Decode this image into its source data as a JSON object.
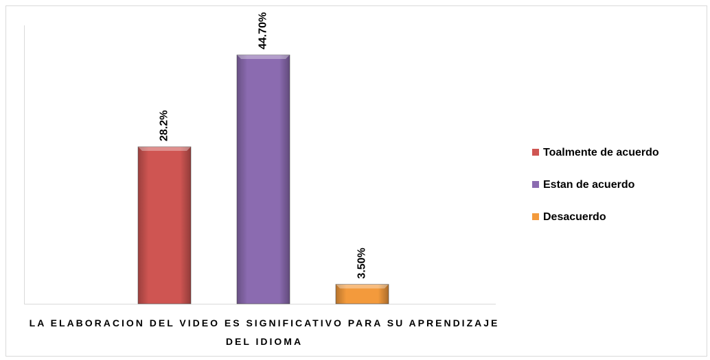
{
  "chart_data": {
    "type": "bar",
    "categories": [
      "LA ELABORACION DEL VIDEO ES SIGNIFICATIVO PARA SU APRENDIZAJE DEL IDIOMA"
    ],
    "series": [
      {
        "name": "Toalmente de acuerdo",
        "color": "#cf5552",
        "values": [
          28.2
        ],
        "value_labels": [
          "28.2%"
        ]
      },
      {
        "name": "Estan de acuerdo",
        "color": "#8b6bb0",
        "values": [
          44.7
        ],
        "value_labels": [
          "44.70%"
        ]
      },
      {
        "name": "Desacuerdo",
        "color": "#f39a3c",
        "values": [
          3.5
        ],
        "value_labels": [
          "3.50%"
        ]
      }
    ],
    "ylim": [
      0,
      50
    ],
    "legend": "right"
  }
}
